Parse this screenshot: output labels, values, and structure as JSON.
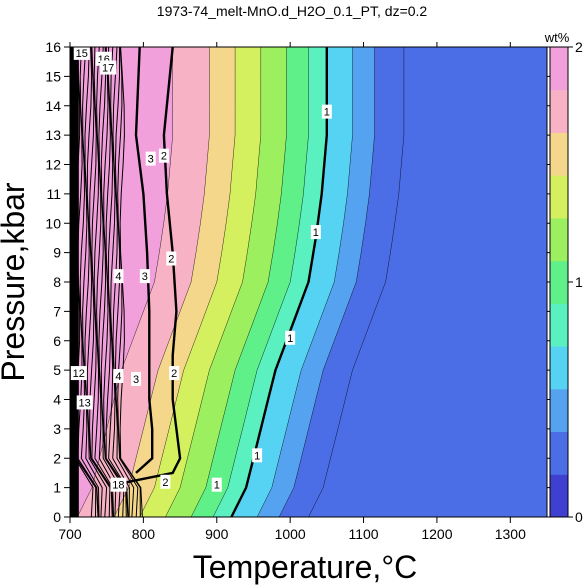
{
  "chart_data": {
    "type": "heatmap",
    "title": "1973-74_melt-MnO.d_H2O_0.1_PT, dz=0.2",
    "xlabel": "Temperature,°C",
    "ylabel": "Pressure,kbar",
    "xlim": [
      700,
      1350
    ],
    "ylim": [
      0,
      16
    ],
    "x_ticks": [
      "700",
      "800",
      "900",
      "1000",
      "1100",
      "1200",
      "1300"
    ],
    "y_ticks": [
      "0",
      "1",
      "2",
      "3",
      "4",
      "5",
      "6",
      "7",
      "8",
      "9",
      "10",
      "11",
      "12",
      "13",
      "14",
      "15",
      "16"
    ],
    "colorbar": {
      "title": "wt%",
      "range": [
        0,
        2
      ],
      "ticks": [
        "0",
        "1",
        "2"
      ],
      "step": 0.2,
      "colors": [
        "#3f3fd0",
        "#4b6ee6",
        "#55a3f0",
        "#56d3f2",
        "#5af0c0",
        "#5ff08a",
        "#9cef5e",
        "#d4f05f",
        "#f5d78c",
        "#f7b3c5",
        "#f2a0dc"
      ]
    },
    "contours": [
      {
        "level": 1,
        "label": "1",
        "points": [
          [
            1050,
            16
          ],
          [
            1050,
            13
          ],
          [
            1043,
            11
          ],
          [
            1035,
            9.5
          ],
          [
            1025,
            8
          ],
          [
            1010,
            7
          ],
          [
            995,
            6
          ],
          [
            980,
            5
          ],
          [
            970,
            4
          ],
          [
            960,
            3
          ],
          [
            950,
            2
          ],
          [
            940,
            1
          ],
          [
            920,
            0
          ]
        ]
      },
      {
        "level": 2,
        "label": "2",
        "points": [
          [
            840,
            16
          ],
          [
            828,
            13
          ],
          [
            832,
            11
          ],
          [
            840,
            9
          ],
          [
            845,
            7
          ],
          [
            840,
            5.5
          ],
          [
            840,
            4
          ],
          [
            845,
            3
          ],
          [
            850,
            2
          ],
          [
            840,
            1.5
          ],
          [
            780,
            1.2
          ],
          [
            760,
            1.1
          ]
        ]
      },
      {
        "level": 3,
        "label": "3",
        "points": [
          [
            795,
            16
          ],
          [
            790,
            13
          ],
          [
            800,
            11
          ],
          [
            805,
            9
          ],
          [
            808,
            7
          ],
          [
            808,
            5.5
          ],
          [
            808,
            4
          ],
          [
            812,
            3
          ],
          [
            812,
            2
          ],
          [
            790,
            1.5
          ]
        ]
      }
    ],
    "contour_labels": [
      {
        "text": "1",
        "x": 1050,
        "y": 13.8
      },
      {
        "text": "1",
        "x": 1035,
        "y": 9.7
      },
      {
        "text": "1",
        "x": 1000,
        "y": 6.1
      },
      {
        "text": "1",
        "x": 955,
        "y": 2.1
      },
      {
        "text": "1",
        "x": 900,
        "y": 1.1
      },
      {
        "text": "2",
        "x": 828,
        "y": 12.3
      },
      {
        "text": "2",
        "x": 838,
        "y": 8.8
      },
      {
        "text": "2",
        "x": 842,
        "y": 4.9
      },
      {
        "text": "2",
        "x": 830,
        "y": 1.2
      },
      {
        "text": "3",
        "x": 810,
        "y": 12.2
      },
      {
        "text": "3",
        "x": 802,
        "y": 8.2
      },
      {
        "text": "3",
        "x": 790,
        "y": 4.7
      },
      {
        "text": "4",
        "x": 766,
        "y": 8.2
      },
      {
        "text": "4",
        "x": 766,
        "y": 4.8
      },
      {
        "text": "15",
        "x": 716,
        "y": 15.8
      },
      {
        "text": "16",
        "x": 746,
        "y": 15.6
      },
      {
        "text": "17",
        "x": 752,
        "y": 15.3
      },
      {
        "text": "12",
        "x": 712,
        "y": 4.9
      },
      {
        "text": "13",
        "x": 720,
        "y": 3.9
      },
      {
        "text": "18",
        "x": 766,
        "y": 1.1
      }
    ]
  }
}
